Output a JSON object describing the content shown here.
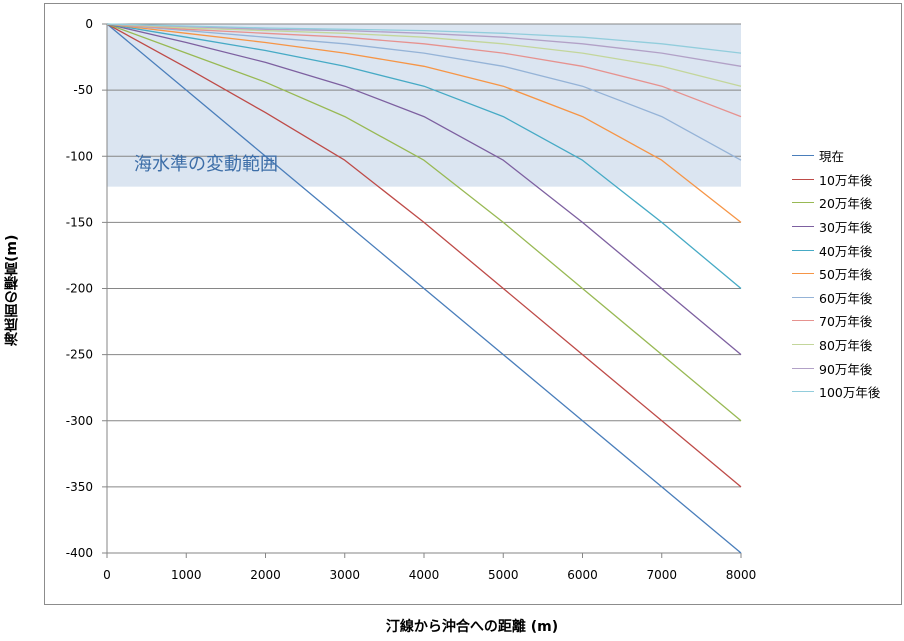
{
  "chart_data": {
    "type": "line",
    "xlabel": "汀線から沖合への距離 (m)",
    "ylabel": "海底面の標高(m)",
    "xlim": [
      0,
      8000
    ],
    "ylim": [
      -400,
      0
    ],
    "x_ticks": [
      "0",
      "1000",
      "2000",
      "3000",
      "4000",
      "5000",
      "6000",
      "7000",
      "8000"
    ],
    "y_ticks": [
      "0",
      "-50",
      "-100",
      "-150",
      "-200",
      "-250",
      "-300",
      "-350",
      "-400"
    ],
    "grid": "horizontal",
    "legend_position": "right",
    "band": {
      "label": "海水準の変動範囲",
      "y_from": 0,
      "y_to": -123,
      "color": "#dbe5f1"
    },
    "x": [
      0,
      1000,
      2000,
      3000,
      4000,
      5000,
      6000,
      7000,
      8000
    ],
    "series": [
      {
        "name": "現在",
        "color": "#4a7ebb",
        "values": [
          0,
          -50,
          -100,
          -150,
          -200,
          -250,
          -300,
          -350,
          -400
        ]
      },
      {
        "name": "10万年後",
        "color": "#be4b48",
        "values": [
          0,
          -33,
          -67,
          -103,
          -150,
          -200,
          -250,
          -300,
          -350
        ]
      },
      {
        "name": "20万年後",
        "color": "#98b954",
        "values": [
          0,
          -22,
          -44,
          -70,
          -103,
          -150,
          -200,
          -250,
          -300
        ]
      },
      {
        "name": "30万年後",
        "color": "#7d60a0",
        "values": [
          0,
          -14,
          -29,
          -47,
          -70,
          -103,
          -150,
          -200,
          -250
        ]
      },
      {
        "name": "40万年後",
        "color": "#46aac5",
        "values": [
          0,
          -10,
          -20,
          -32,
          -47,
          -70,
          -103,
          -150,
          -200
        ]
      },
      {
        "name": "50万年後",
        "color": "#f69546",
        "values": [
          0,
          -7,
          -14,
          -22,
          -32,
          -47,
          -70,
          -103,
          -150
        ]
      },
      {
        "name": "60万年後",
        "color": "#95b3d7",
        "values": [
          0,
          -5,
          -10,
          -15,
          -22,
          -32,
          -47,
          -70,
          -103
        ]
      },
      {
        "name": "70万年後",
        "color": "#e6928f",
        "values": [
          0,
          -4,
          -7,
          -10,
          -15,
          -22,
          -32,
          -47,
          -70
        ]
      },
      {
        "name": "80万年後",
        "color": "#c3d69b",
        "values": [
          0,
          -3,
          -5,
          -7,
          -10,
          -15,
          -22,
          -32,
          -47
        ]
      },
      {
        "name": "90万年後",
        "color": "#b2a1c7",
        "values": [
          0,
          -2,
          -4,
          -5,
          -7,
          -10,
          -15,
          -22,
          -32
        ]
      },
      {
        "name": "100万年後",
        "color": "#92cddc",
        "values": [
          0,
          -1.5,
          -3,
          -4,
          -5,
          -7,
          -10,
          -15,
          -22
        ]
      }
    ]
  }
}
